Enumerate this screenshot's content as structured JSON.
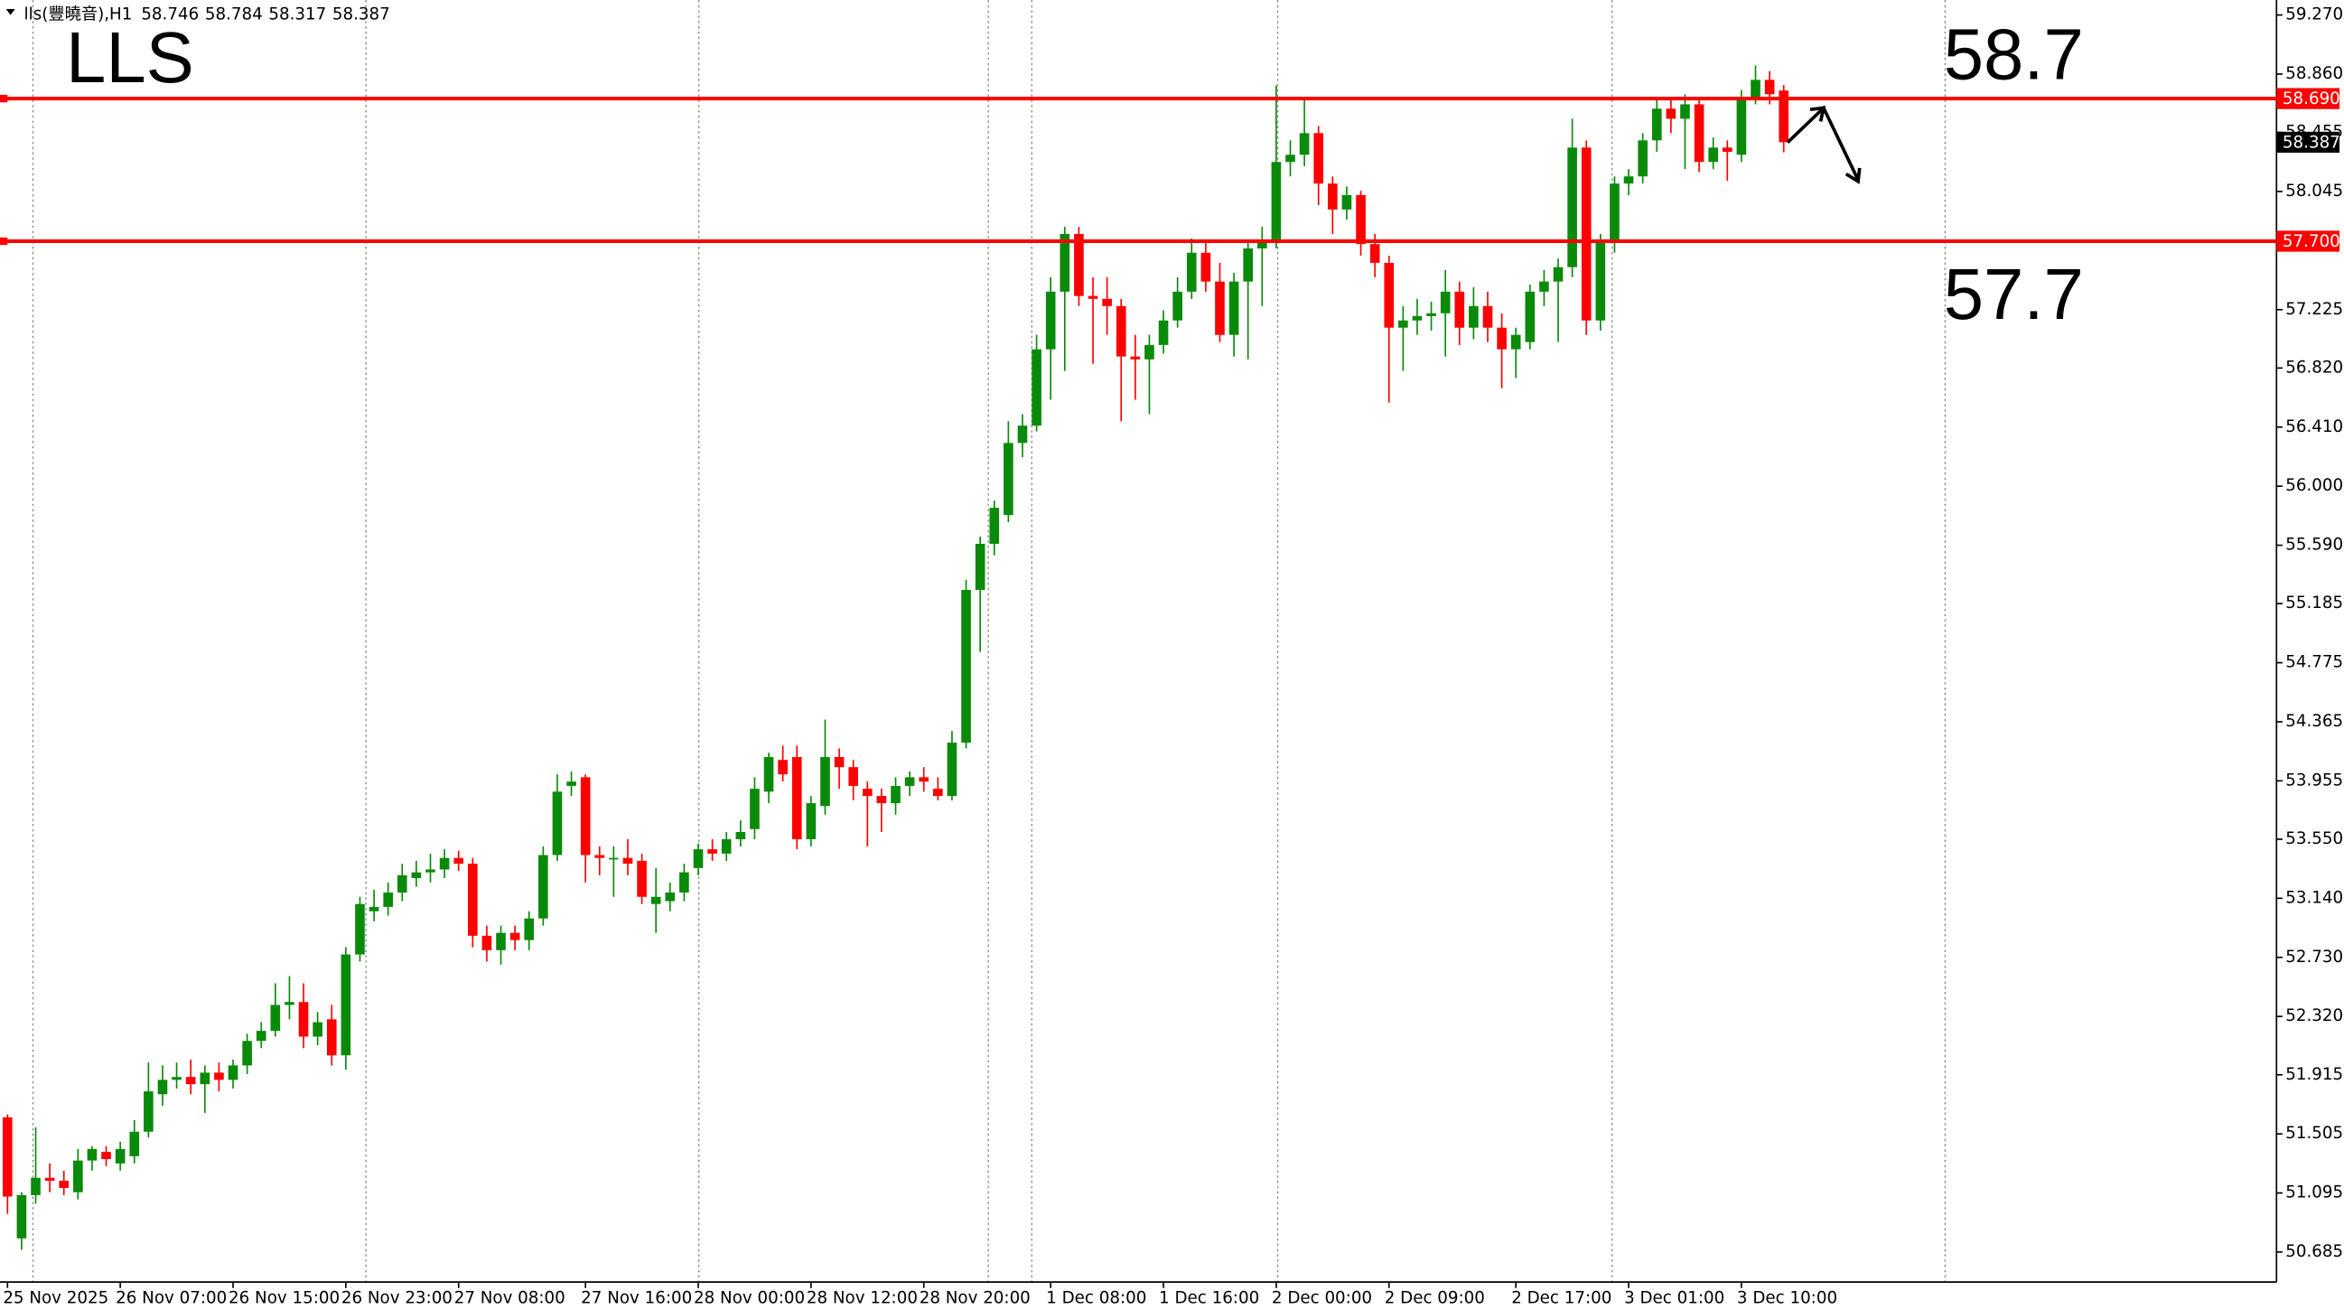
{
  "chart_data": {
    "type": "candlestick",
    "header": "lls(豐曉音),H1",
    "annotations": [
      "LLS",
      "58.7",
      "57.7"
    ],
    "up_color": "#0a8a0a",
    "down_color": "#ff0000",
    "level_color": "#ff0000",
    "ylim": [
      50.477,
      59.374
    ],
    "yticks": [
      {
        "value": 59.27,
        "label": "59.270"
      },
      {
        "value": 58.86,
        "label": "58.860"
      },
      {
        "value": 58.455,
        "label": "58.455"
      },
      {
        "value": 58.045,
        "label": "58.045"
      },
      {
        "value": 57.225,
        "label": "57.225"
      },
      {
        "value": 56.82,
        "label": "56.820"
      },
      {
        "value": 56.41,
        "label": "56.410"
      },
      {
        "value": 56.0,
        "label": "56.000"
      },
      {
        "value": 55.59,
        "label": "55.590"
      },
      {
        "value": 55.185,
        "label": "55.185"
      },
      {
        "value": 54.775,
        "label": "54.775"
      },
      {
        "value": 54.365,
        "label": "54.365"
      },
      {
        "value": 53.955,
        "label": "53.955"
      },
      {
        "value": 53.55,
        "label": "53.550"
      },
      {
        "value": 53.14,
        "label": "53.140"
      },
      {
        "value": 52.73,
        "label": "52.730"
      },
      {
        "value": 52.32,
        "label": "52.320"
      },
      {
        "value": 51.915,
        "label": "51.915"
      },
      {
        "value": 51.505,
        "label": "51.505"
      },
      {
        "value": 51.095,
        "label": "51.095"
      },
      {
        "value": 50.685,
        "label": "50.685"
      }
    ],
    "levels": [
      {
        "value": 58.69,
        "label": "58.690"
      },
      {
        "value": 57.7,
        "label": "57.700"
      }
    ],
    "categories": [
      "25 Nov 2025",
      null,
      null,
      null,
      null,
      null,
      null,
      null,
      "26 Nov 07:00",
      null,
      null,
      null,
      null,
      null,
      null,
      null,
      "26 Nov 15:00",
      null,
      null,
      null,
      null,
      null,
      null,
      null,
      "26 Nov 23:00",
      null,
      null,
      null,
      null,
      null,
      null,
      null,
      "27 Nov 08:00",
      null,
      null,
      null,
      null,
      null,
      null,
      null,
      null,
      "27 Nov 16:00",
      null,
      null,
      null,
      null,
      null,
      null,
      null,
      "28 Nov 00:00",
      null,
      null,
      null,
      null,
      null,
      null,
      null,
      "28 Nov 12:00",
      null,
      null,
      null,
      null,
      null,
      null,
      null,
      "28 Nov 20:00",
      null,
      null,
      null,
      null,
      null,
      null,
      null,
      null,
      "1 Dec 08:00",
      null,
      null,
      null,
      null,
      null,
      null,
      null,
      "1 Dec 16:00",
      null,
      null,
      null,
      null,
      null,
      null,
      null,
      "2 Dec 00:00",
      null,
      null,
      null,
      null,
      null,
      null,
      null,
      "2 Dec 09:00",
      null,
      null,
      null,
      null,
      null,
      null,
      null,
      null,
      "2 Dec 17:00",
      null,
      null,
      null,
      null,
      null,
      null,
      null,
      "3 Dec 01:00",
      null,
      null,
      null,
      null,
      null,
      null,
      null,
      "3 Dec 10:00",
      null,
      null,
      null
    ],
    "ohlc": [
      [
        51.62,
        51.64,
        50.95,
        51.07
      ],
      [
        50.78,
        51.1,
        50.7,
        51.08
      ],
      [
        51.08,
        51.55,
        51.02,
        51.2
      ],
      [
        51.2,
        51.3,
        51.1,
        51.18
      ],
      [
        51.18,
        51.25,
        51.08,
        51.13
      ],
      [
        51.1,
        51.4,
        51.05,
        51.32
      ],
      [
        51.32,
        51.42,
        51.25,
        51.4
      ],
      [
        51.38,
        51.42,
        51.28,
        51.33
      ],
      [
        51.3,
        51.45,
        51.25,
        51.4
      ],
      [
        51.35,
        51.6,
        51.3,
        51.52
      ],
      [
        51.52,
        52.0,
        51.48,
        51.8
      ],
      [
        51.78,
        51.98,
        51.7,
        51.88
      ],
      [
        51.88,
        52.0,
        51.82,
        51.9
      ],
      [
        51.9,
        52.02,
        51.78,
        51.85
      ],
      [
        51.85,
        51.98,
        51.65,
        51.93
      ],
      [
        51.93,
        52.0,
        51.8,
        51.88
      ],
      [
        51.88,
        52.02,
        51.82,
        51.98
      ],
      [
        51.98,
        52.2,
        51.92,
        52.15
      ],
      [
        52.15,
        52.28,
        52.1,
        52.22
      ],
      [
        52.22,
        52.55,
        52.18,
        52.4
      ],
      [
        52.4,
        52.6,
        52.3,
        52.42
      ],
      [
        52.42,
        52.55,
        52.1,
        52.18
      ],
      [
        52.18,
        52.35,
        52.12,
        52.28
      ],
      [
        52.3,
        52.4,
        51.98,
        52.05
      ],
      [
        52.05,
        52.8,
        51.95,
        52.75
      ],
      [
        52.75,
        53.15,
        52.7,
        53.1
      ],
      [
        53.05,
        53.2,
        52.98,
        53.08
      ],
      [
        53.08,
        53.25,
        53.02,
        53.18
      ],
      [
        53.18,
        53.38,
        53.12,
        53.3
      ],
      [
        53.28,
        53.4,
        53.22,
        53.32
      ],
      [
        53.32,
        53.45,
        53.25,
        53.34
      ],
      [
        53.34,
        53.48,
        53.28,
        53.42
      ],
      [
        53.42,
        53.47,
        53.33,
        53.38
      ],
      [
        53.38,
        53.42,
        52.8,
        52.88
      ],
      [
        52.88,
        52.95,
        52.7,
        52.78
      ],
      [
        52.78,
        52.95,
        52.68,
        52.9
      ],
      [
        52.9,
        52.95,
        52.78,
        52.85
      ],
      [
        52.85,
        53.05,
        52.78,
        53.0
      ],
      [
        53.0,
        53.5,
        52.95,
        53.44
      ],
      [
        53.44,
        54.0,
        53.4,
        53.88
      ],
      [
        53.92,
        54.02,
        53.85,
        53.95
      ],
      [
        53.98,
        54.0,
        53.25,
        53.44
      ],
      [
        53.44,
        53.5,
        53.3,
        53.42
      ],
      [
        53.42,
        53.5,
        53.15,
        53.42
      ],
      [
        53.42,
        53.55,
        53.3,
        53.38
      ],
      [
        53.4,
        53.45,
        53.1,
        53.15
      ],
      [
        53.1,
        53.35,
        52.9,
        53.15
      ],
      [
        53.12,
        53.25,
        53.05,
        53.18
      ],
      [
        53.18,
        53.38,
        53.12,
        53.32
      ],
      [
        53.35,
        53.52,
        53.3,
        53.48
      ],
      [
        53.48,
        53.55,
        53.4,
        53.45
      ],
      [
        53.45,
        53.6,
        53.4,
        53.55
      ],
      [
        53.55,
        53.68,
        53.5,
        53.6
      ],
      [
        53.62,
        53.98,
        53.55,
        53.9
      ],
      [
        53.88,
        54.15,
        53.8,
        54.12
      ],
      [
        54.1,
        54.2,
        53.95,
        54.0
      ],
      [
        54.12,
        54.2,
        53.48,
        53.55
      ],
      [
        53.55,
        53.85,
        53.5,
        53.8
      ],
      [
        53.78,
        54.38,
        53.72,
        54.12
      ],
      [
        54.12,
        54.18,
        53.9,
        54.05
      ],
      [
        54.05,
        54.1,
        53.82,
        53.92
      ],
      [
        53.9,
        53.95,
        53.5,
        53.85
      ],
      [
        53.85,
        53.9,
        53.6,
        53.8
      ],
      [
        53.8,
        53.98,
        53.72,
        53.92
      ],
      [
        53.92,
        54.02,
        53.85,
        53.98
      ],
      [
        53.98,
        54.05,
        53.88,
        53.95
      ],
      [
        53.9,
        53.98,
        53.82,
        53.85
      ],
      [
        53.85,
        54.3,
        53.82,
        54.22
      ],
      [
        54.22,
        55.35,
        54.18,
        55.28
      ],
      [
        55.28,
        55.65,
        54.85,
        55.6
      ],
      [
        55.6,
        55.9,
        55.52,
        55.85
      ],
      [
        55.8,
        56.45,
        55.75,
        56.3
      ],
      [
        56.3,
        56.5,
        56.2,
        56.42
      ],
      [
        56.42,
        57.05,
        56.38,
        56.95
      ],
      [
        56.95,
        57.45,
        56.6,
        57.35
      ],
      [
        57.35,
        57.8,
        56.8,
        57.75
      ],
      [
        57.75,
        57.8,
        57.25,
        57.32
      ],
      [
        57.32,
        57.45,
        56.85,
        57.3
      ],
      [
        57.3,
        57.45,
        57.05,
        57.25
      ],
      [
        57.25,
        57.3,
        56.45,
        56.9
      ],
      [
        56.9,
        57.05,
        56.6,
        56.88
      ],
      [
        56.88,
        57.05,
        56.5,
        56.98
      ],
      [
        56.98,
        57.22,
        56.92,
        57.15
      ],
      [
        57.15,
        57.45,
        57.1,
        57.35
      ],
      [
        57.35,
        57.72,
        57.3,
        57.62
      ],
      [
        57.62,
        57.7,
        57.35,
        57.42
      ],
      [
        57.42,
        57.55,
        57.0,
        57.05
      ],
      [
        57.05,
        57.48,
        56.9,
        57.42
      ],
      [
        57.42,
        57.7,
        56.88,
        57.65
      ],
      [
        57.65,
        57.8,
        57.25,
        57.7
      ],
      [
        57.7,
        58.78,
        57.65,
        58.25
      ],
      [
        58.25,
        58.4,
        58.15,
        58.3
      ],
      [
        58.3,
        58.7,
        58.22,
        58.45
      ],
      [
        58.45,
        58.5,
        57.95,
        58.1
      ],
      [
        58.1,
        58.15,
        57.75,
        57.92
      ],
      [
        57.92,
        58.08,
        57.85,
        58.02
      ],
      [
        58.02,
        58.05,
        57.6,
        57.68
      ],
      [
        57.68,
        57.75,
        57.45,
        57.55
      ],
      [
        57.55,
        57.6,
        56.58,
        57.1
      ],
      [
        57.1,
        57.25,
        56.8,
        57.15
      ],
      [
        57.15,
        57.3,
        57.05,
        57.18
      ],
      [
        57.18,
        57.28,
        57.08,
        57.2
      ],
      [
        57.2,
        57.5,
        56.9,
        57.35
      ],
      [
        57.35,
        57.42,
        56.98,
        57.1
      ],
      [
        57.1,
        57.38,
        57.02,
        57.25
      ],
      [
        57.25,
        57.35,
        57.0,
        57.1
      ],
      [
        57.1,
        57.2,
        56.68,
        56.95
      ],
      [
        56.95,
        57.1,
        56.75,
        57.05
      ],
      [
        57.0,
        57.4,
        56.95,
        57.35
      ],
      [
        57.35,
        57.5,
        57.25,
        57.42
      ],
      [
        57.42,
        57.58,
        57.0,
        57.52
      ],
      [
        57.52,
        58.55,
        57.45,
        58.35
      ],
      [
        58.35,
        58.4,
        57.05,
        57.15
      ],
      [
        57.15,
        57.75,
        57.08,
        57.7
      ],
      [
        57.7,
        58.15,
        57.62,
        58.1
      ],
      [
        58.1,
        58.2,
        58.02,
        58.15
      ],
      [
        58.15,
        58.45,
        58.1,
        58.4
      ],
      [
        58.4,
        58.68,
        58.32,
        58.62
      ],
      [
        58.62,
        58.68,
        58.45,
        58.55
      ],
      [
        58.55,
        58.72,
        58.2,
        58.65
      ],
      [
        58.65,
        58.7,
        58.18,
        58.25
      ],
      [
        58.25,
        58.42,
        58.2,
        58.35
      ],
      [
        58.35,
        58.4,
        58.12,
        58.32
      ],
      [
        58.3,
        58.75,
        58.25,
        58.7
      ],
      [
        58.7,
        58.92,
        58.65,
        58.82
      ],
      [
        58.82,
        58.88,
        58.65,
        58.72
      ],
      [
        58.746,
        58.784,
        58.317,
        58.387
      ]
    ]
  }
}
